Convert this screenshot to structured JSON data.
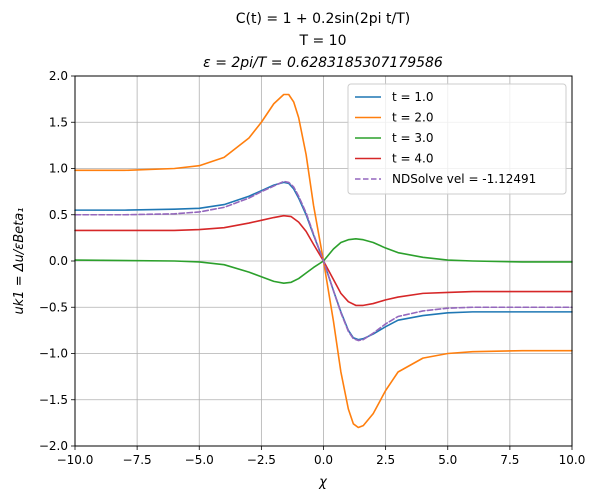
{
  "chart_data": {
    "type": "line",
    "title": [
      "C(t) = 1 + 0.2sin(2pi t/T)",
      "T = 10",
      "ε = 2pi/T = 0.6283185307179586"
    ],
    "xlabel": "χ",
    "ylabel": "uk1 = Δu/εBeta₁",
    "xlim": [
      -10,
      10
    ],
    "ylim": [
      -2,
      2
    ],
    "xticks": [
      "−10.0",
      "−7.5",
      "−5.0",
      "−2.5",
      "0.0",
      "2.5",
      "5.0",
      "7.5",
      "10.0"
    ],
    "yticks": [
      "−2.0",
      "−1.5",
      "−1.0",
      "−0.5",
      "0.0",
      "0.5",
      "1.0",
      "1.5",
      "2.0"
    ],
    "grid": true,
    "legend_position": "top-right",
    "series": [
      {
        "name": "t = 1.0",
        "color": "#1f77b4",
        "dash": false,
        "x": [
          -10,
          -8,
          -6,
          -5,
          -4,
          -3,
          -2.5,
          -2,
          -1.6,
          -1.4,
          -1.2,
          -1,
          -0.7,
          -0.4,
          0,
          0.4,
          0.7,
          1,
          1.2,
          1.4,
          1.6,
          2,
          2.5,
          3,
          4,
          5,
          6,
          8,
          10
        ],
        "y": [
          0.55,
          0.55,
          0.56,
          0.57,
          0.61,
          0.7,
          0.76,
          0.82,
          0.85,
          0.84,
          0.78,
          0.68,
          0.5,
          0.28,
          0.0,
          -0.32,
          -0.55,
          -0.75,
          -0.83,
          -0.85,
          -0.84,
          -0.79,
          -0.71,
          -0.64,
          -0.59,
          -0.56,
          -0.55,
          -0.55,
          -0.55
        ]
      },
      {
        "name": "t = 2.0",
        "color": "#ff7f0e",
        "dash": false,
        "x": [
          -10,
          -8,
          -6,
          -5,
          -4,
          -3,
          -2.5,
          -2,
          -1.6,
          -1.4,
          -1.2,
          -1,
          -0.7,
          -0.4,
          0,
          0.4,
          0.7,
          1,
          1.2,
          1.4,
          1.6,
          2,
          2.5,
          3,
          4,
          5,
          6,
          8,
          10
        ],
        "y": [
          0.98,
          0.98,
          1.0,
          1.03,
          1.12,
          1.33,
          1.5,
          1.7,
          1.8,
          1.8,
          1.72,
          1.55,
          1.15,
          0.6,
          0.0,
          -0.65,
          -1.2,
          -1.6,
          -1.76,
          -1.8,
          -1.78,
          -1.65,
          -1.4,
          -1.2,
          -1.05,
          -1.0,
          -0.98,
          -0.97,
          -0.97
        ]
      },
      {
        "name": "t = 3.0",
        "color": "#2ca02c",
        "dash": false,
        "x": [
          -10,
          -6,
          -5,
          -4,
          -3,
          -2.5,
          -2,
          -1.6,
          -1.3,
          -1,
          -0.7,
          -0.4,
          0,
          0.4,
          0.7,
          1,
          1.3,
          1.6,
          2,
          2.5,
          3,
          4,
          5,
          6,
          8,
          10
        ],
        "y": [
          0.01,
          0.0,
          -0.01,
          -0.04,
          -0.12,
          -0.17,
          -0.22,
          -0.24,
          -0.23,
          -0.19,
          -0.13,
          -0.07,
          0.0,
          0.13,
          0.2,
          0.23,
          0.24,
          0.23,
          0.2,
          0.14,
          0.09,
          0.04,
          0.01,
          0.0,
          -0.01,
          -0.01
        ]
      },
      {
        "name": "t = 4.0",
        "color": "#d62728",
        "dash": false,
        "x": [
          -10,
          -8,
          -6,
          -5,
          -4,
          -3,
          -2.5,
          -2,
          -1.6,
          -1.3,
          -1,
          -0.7,
          -0.4,
          0,
          0.4,
          0.7,
          1,
          1.3,
          1.6,
          2,
          2.5,
          3,
          4,
          5,
          6,
          8,
          10
        ],
        "y": [
          0.33,
          0.33,
          0.33,
          0.34,
          0.36,
          0.41,
          0.44,
          0.47,
          0.49,
          0.48,
          0.42,
          0.32,
          0.18,
          0.0,
          -0.2,
          -0.35,
          -0.44,
          -0.48,
          -0.48,
          -0.46,
          -0.42,
          -0.39,
          -0.35,
          -0.34,
          -0.33,
          -0.33,
          -0.33
        ]
      },
      {
        "name": "NDSolve vel = -1.12491",
        "color": "#9467bd",
        "dash": true,
        "x": [
          -10,
          -8,
          -6,
          -5,
          -4,
          -3,
          -2.5,
          -2,
          -1.6,
          -1.4,
          -1.2,
          -1,
          -0.7,
          -0.4,
          0,
          0.4,
          0.7,
          1,
          1.2,
          1.4,
          1.6,
          2,
          2.5,
          3,
          4,
          5,
          6,
          8,
          10
        ],
        "y": [
          0.5,
          0.5,
          0.51,
          0.53,
          0.58,
          0.68,
          0.75,
          0.81,
          0.86,
          0.85,
          0.8,
          0.7,
          0.52,
          0.29,
          0.0,
          -0.32,
          -0.56,
          -0.76,
          -0.84,
          -0.86,
          -0.85,
          -0.78,
          -0.68,
          -0.6,
          -0.54,
          -0.51,
          -0.5,
          -0.5,
          -0.5
        ]
      }
    ]
  }
}
